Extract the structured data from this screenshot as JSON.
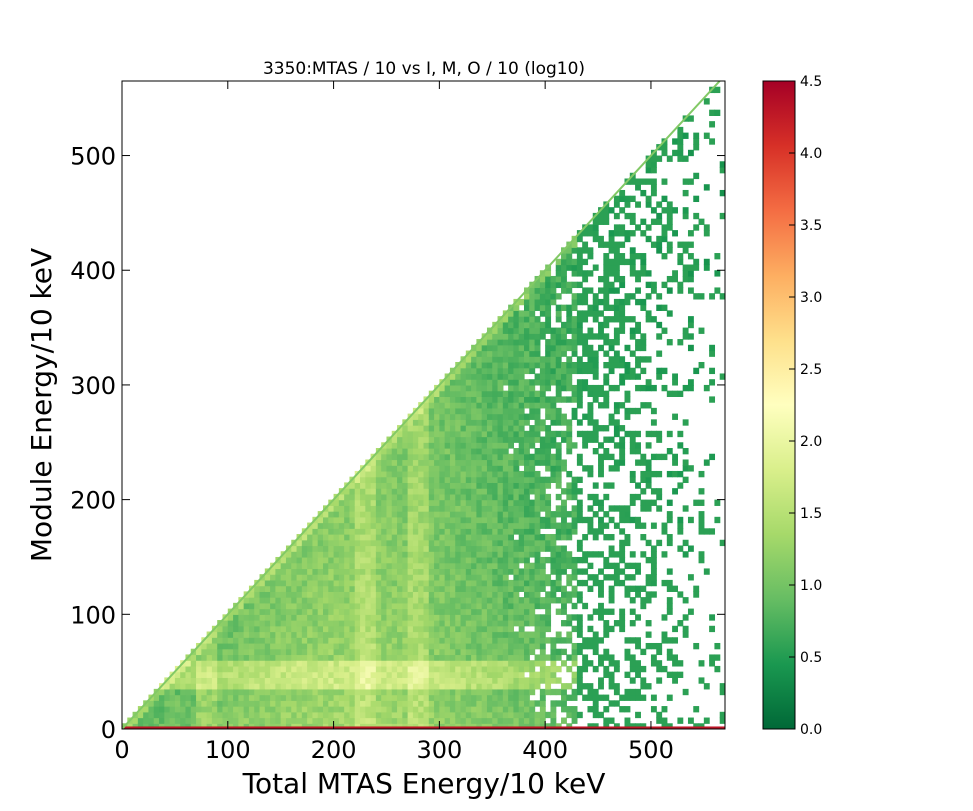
{
  "chart_data": {
    "type": "heatmap",
    "title": "3350:MTAS / 10  vs I, M, O / 10 (log10)",
    "xlabel": "Total MTAS Energy/10 keV",
    "ylabel": "Module Energy/10 keV",
    "xlim": [
      0,
      570
    ],
    "ylim": [
      0,
      565
    ],
    "x_ticks": [
      0,
      100,
      200,
      300,
      400,
      500
    ],
    "y_ticks": [
      0,
      100,
      200,
      300,
      400,
      500
    ],
    "x_tick_labels": [
      "0",
      "100",
      "200",
      "300",
      "400",
      "500"
    ],
    "y_tick_labels": [
      "0",
      "100",
      "200",
      "300",
      "400",
      "500"
    ],
    "colorbar": {
      "min": 0.0,
      "max": 4.5,
      "ticks": [
        0.0,
        0.5,
        1.0,
        1.5,
        2.0,
        2.5,
        3.0,
        3.5,
        4.0,
        4.5
      ],
      "tick_labels": [
        "0.0",
        "0.5",
        "1.0",
        "1.5",
        "2.0",
        "2.5",
        "3.0",
        "3.5",
        "4.0",
        "4.5"
      ],
      "colormap": "RdYlGn_r",
      "colors": [
        "#006837",
        "#1a9850",
        "#66bd63",
        "#a6d96a",
        "#d9ef8b",
        "#ffffbf",
        "#fee08b",
        "#fdae61",
        "#f46d43",
        "#d73027",
        "#a50026"
      ]
    },
    "grid": false,
    "features": {
      "populated_region": "module energy <= total energy",
      "diagonal_line_total": 565,
      "horizontal_band_module_energy": [
        45,
        55
      ],
      "vertical_bands_total_energy": [
        80,
        230,
        280
      ],
      "peak_row_module_energy": 0,
      "peak_value_log10": 4.3
    }
  }
}
